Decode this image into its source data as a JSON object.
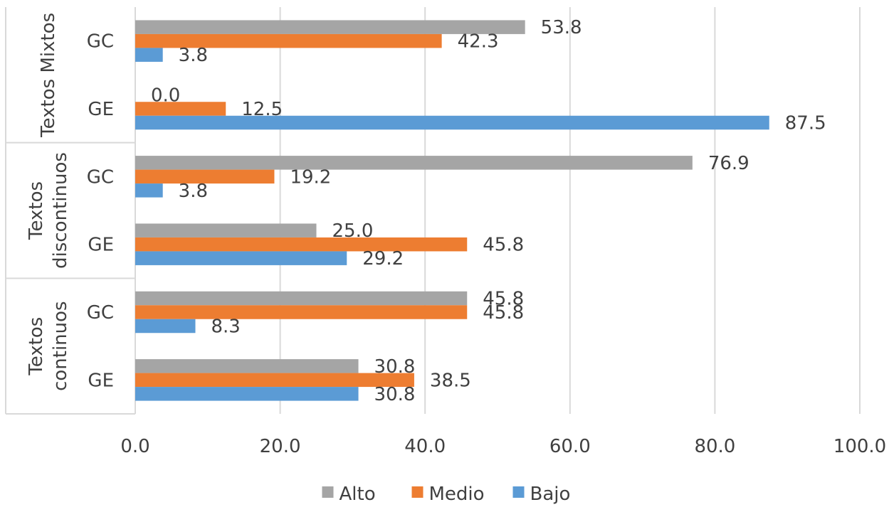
{
  "chart_data": {
    "type": "bar",
    "orientation": "horizontal",
    "title": "",
    "xlabel": "",
    "ylabel": "",
    "xlim": [
      0,
      100
    ],
    "x_ticks": [
      "0.0",
      "20.0",
      "40.0",
      "60.0",
      "80.0",
      "100.0"
    ],
    "grid": "vertical",
    "legend_position": "bottom",
    "groups": [
      {
        "name": "Textos Mixtos",
        "label_lines": [
          "Textos Mixtos"
        ],
        "categories": [
          "GC",
          "GE"
        ]
      },
      {
        "name": "Textos discontinuos",
        "label_lines": [
          "Textos",
          "discontinuos"
        ],
        "categories": [
          "GC",
          "GE"
        ]
      },
      {
        "name": "Textos continuos",
        "label_lines": [
          "Textos",
          "continuos"
        ],
        "categories": [
          "GC",
          "GE"
        ]
      }
    ],
    "series": [
      {
        "name": "Alto",
        "color": "#a5a5a5",
        "values": [
          53.8,
          0.0,
          76.9,
          25.0,
          45.8,
          30.8
        ],
        "labels": [
          "53.8",
          "0.0",
          "76.9",
          "25.0",
          "45.8",
          "30.8"
        ]
      },
      {
        "name": "Medio",
        "color": "#ed7d31",
        "values": [
          42.3,
          12.5,
          19.2,
          45.8,
          45.8,
          38.5
        ],
        "labels": [
          "42.3",
          "12.5",
          "19.2",
          "45.8",
          "45.8",
          "38.5"
        ]
      },
      {
        "name": "Bajo",
        "color": "#5b9bd5",
        "values": [
          3.8,
          87.5,
          3.8,
          29.2,
          8.3,
          30.8
        ],
        "labels": [
          "3.8",
          "87.5",
          "3.8",
          "29.2",
          "8.3",
          "30.8"
        ]
      }
    ]
  }
}
